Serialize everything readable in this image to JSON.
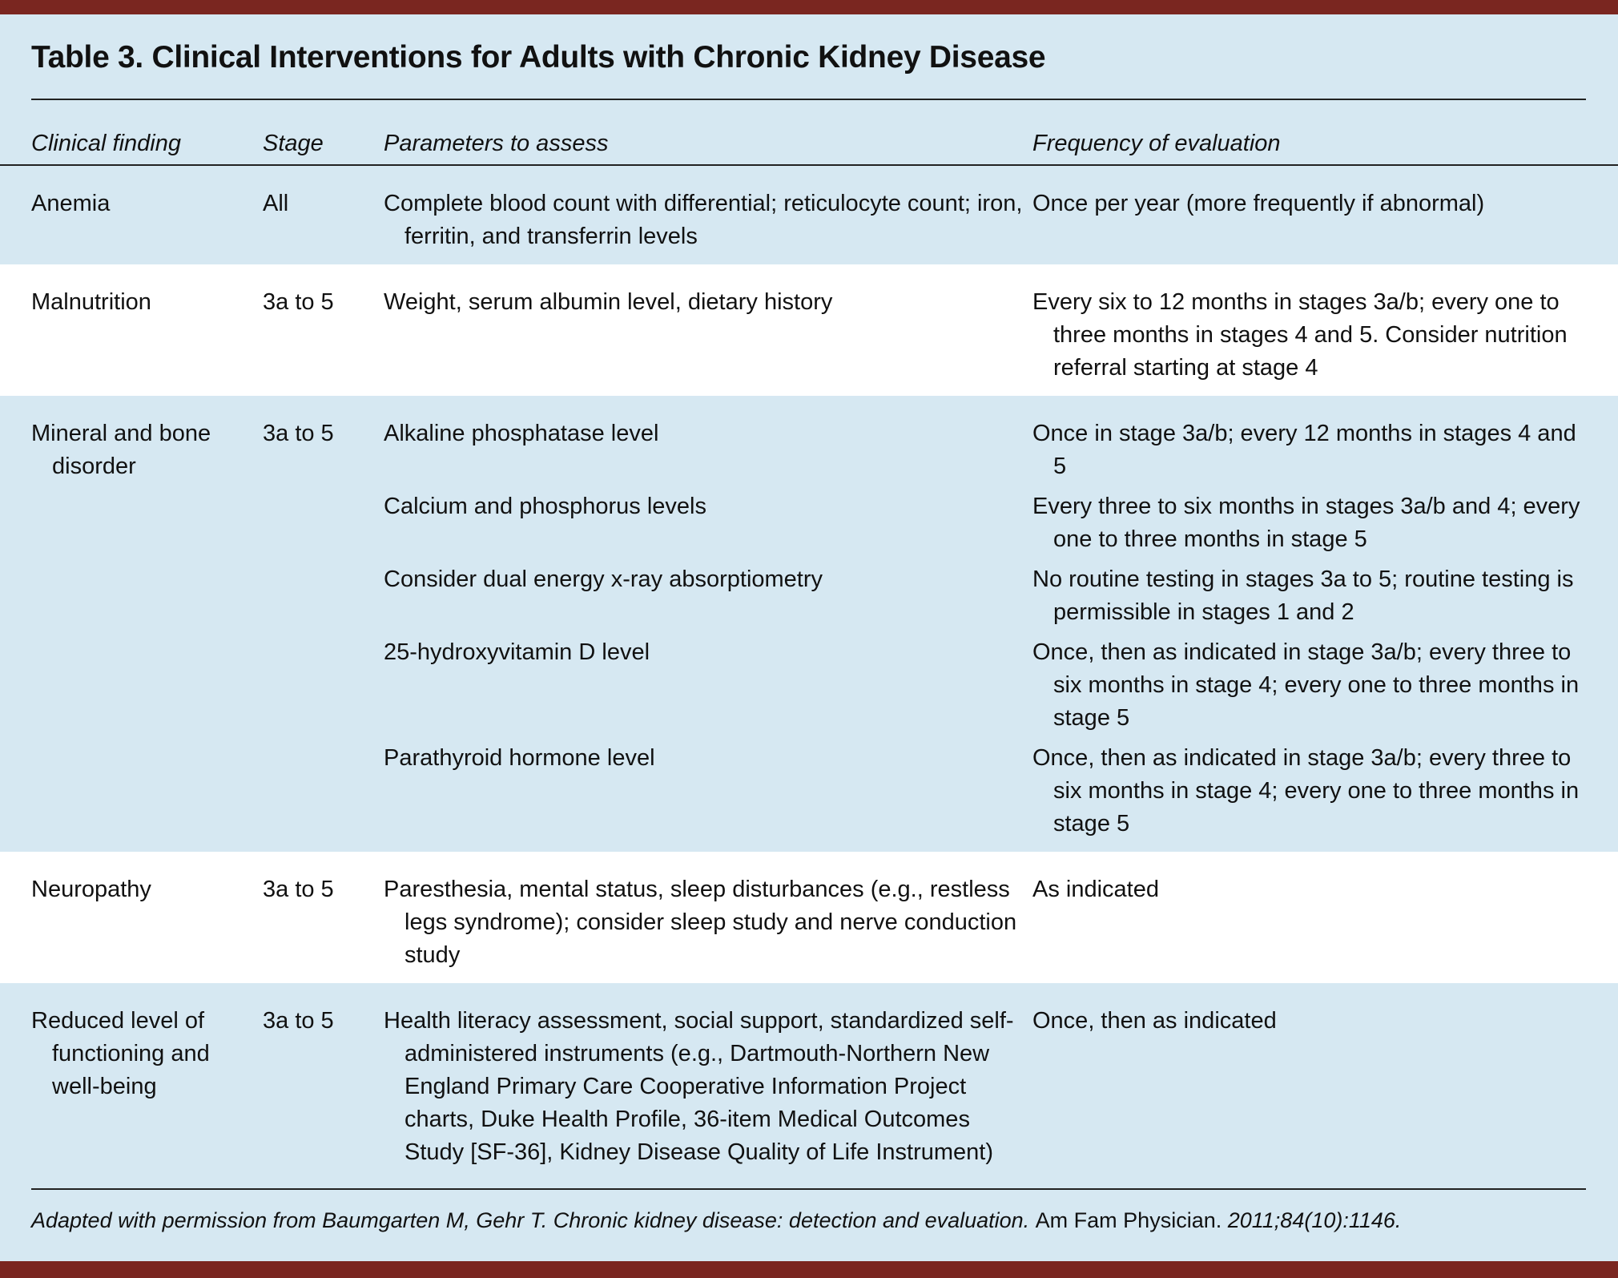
{
  "colors": {
    "band": "#7a2620",
    "background": "#d6e8f2",
    "alt_row": "#ffffff"
  },
  "title": "Table 3. Clinical Interventions for Adults with Chronic Kidney Disease",
  "headers": [
    "Clinical finding",
    "Stage",
    "Parameters to assess",
    "Frequency of evaluation"
  ],
  "rows": [
    {
      "finding": "Anemia",
      "stage": "All",
      "items": [
        {
          "parameter": "Complete blood count with differential; reticulocyte count; iron, ferritin, and transferrin levels",
          "frequency": "Once per year (more frequently if abnormal)"
        }
      ]
    },
    {
      "finding": "Malnutrition",
      "stage": "3a to 5",
      "items": [
        {
          "parameter": "Weight, serum albumin level, dietary history",
          "frequency": "Every six to 12 months in stages 3a/b; every one to three months in stages 4 and 5. Consider nutrition referral starting at stage 4"
        }
      ]
    },
    {
      "finding": "Mineral and bone disorder",
      "stage": "3a to 5",
      "items": [
        {
          "parameter": "Alkaline phosphatase level",
          "frequency": "Once in stage 3a/b; every 12 months in stages 4 and 5"
        },
        {
          "parameter": "Calcium and phosphorus levels",
          "frequency": "Every three to six months in stages 3a/b and 4; every one to three months in stage 5"
        },
        {
          "parameter": "Consider dual energy x-ray absorptiometry",
          "frequency": "No routine testing in stages 3a to 5; routine testing is permissible in stages 1 and 2"
        },
        {
          "parameter": "25-hydroxyvitamin D level",
          "frequency": "Once, then as indicated in stage 3a/b; every three to six months in stage 4; every one to three months in stage 5"
        },
        {
          "parameter": "Parathyroid hormone level",
          "frequency": "Once, then as indicated in stage 3a/b; every three to six months in stage 4; every one to three months in stage 5"
        }
      ]
    },
    {
      "finding": "Neuropathy",
      "stage": "3a to 5",
      "items": [
        {
          "parameter": "Paresthesia, mental status, sleep disturbances (e.g., restless legs syndrome); consider sleep study and nerve conduction study",
          "frequency": "As indicated"
        }
      ]
    },
    {
      "finding": "Reduced level of functioning and well-being",
      "stage": "3a to 5",
      "items": [
        {
          "parameter": "Health literacy assessment, social support, standardized self-administered instruments (e.g., Dartmouth-Northern New England Primary Care Cooperative Information Project charts, Duke Health Profile, 36-item Medical Outcomes Study [SF-36], Kidney Disease Quality of Life Instrument)",
          "frequency": "Once, then as indicated"
        }
      ]
    }
  ],
  "footnote": {
    "text1": "Adapted with permission from Baumgarten M, Gehr T. Chronic kidney disease: detection and evaluation. ",
    "journal": "Am Fam Physician.",
    "text2": " 2011;84(10):1146."
  }
}
